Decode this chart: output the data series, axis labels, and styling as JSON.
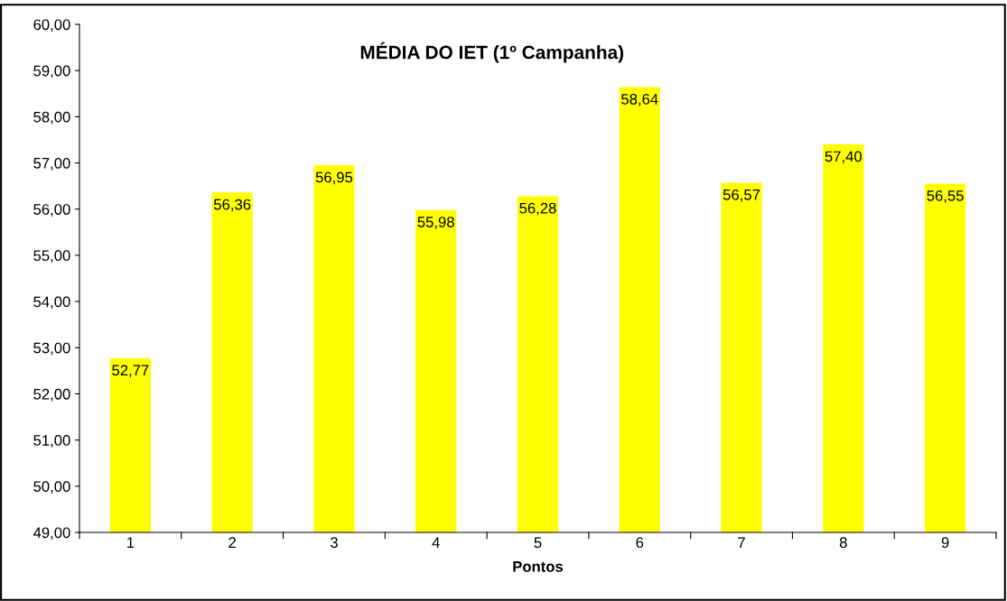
{
  "chart_data": {
    "type": "bar",
    "title": "MÉDIA DO IET (1º Campanha)",
    "xlabel": "Pontos",
    "categories": [
      "1",
      "2",
      "3",
      "4",
      "5",
      "6",
      "7",
      "8",
      "9"
    ],
    "values": [
      52.77,
      56.36,
      56.95,
      55.98,
      56.28,
      58.64,
      56.57,
      57.4,
      56.55
    ],
    "value_labels": [
      "52,77",
      "56,36",
      "56,95",
      "55,98",
      "56,28",
      "58,64",
      "56,57",
      "57,40",
      "56,55"
    ],
    "color": "#ffff00",
    "ylim": [
      49,
      60
    ],
    "yticks": [
      {
        "value": 49,
        "label": "49,00"
      },
      {
        "value": 50,
        "label": "50,00"
      },
      {
        "value": 51,
        "label": "51,00"
      },
      {
        "value": 52,
        "label": "52,00"
      },
      {
        "value": 53,
        "label": "53,00"
      },
      {
        "value": 54,
        "label": "54,00"
      },
      {
        "value": 55,
        "label": "55,00"
      },
      {
        "value": 56,
        "label": "56,00"
      },
      {
        "value": 57,
        "label": "57,00"
      },
      {
        "value": 58,
        "label": "58,00"
      },
      {
        "value": 59,
        "label": "59,00"
      },
      {
        "value": 60,
        "label": "60,00"
      }
    ],
    "grid": false,
    "legend": false
  }
}
